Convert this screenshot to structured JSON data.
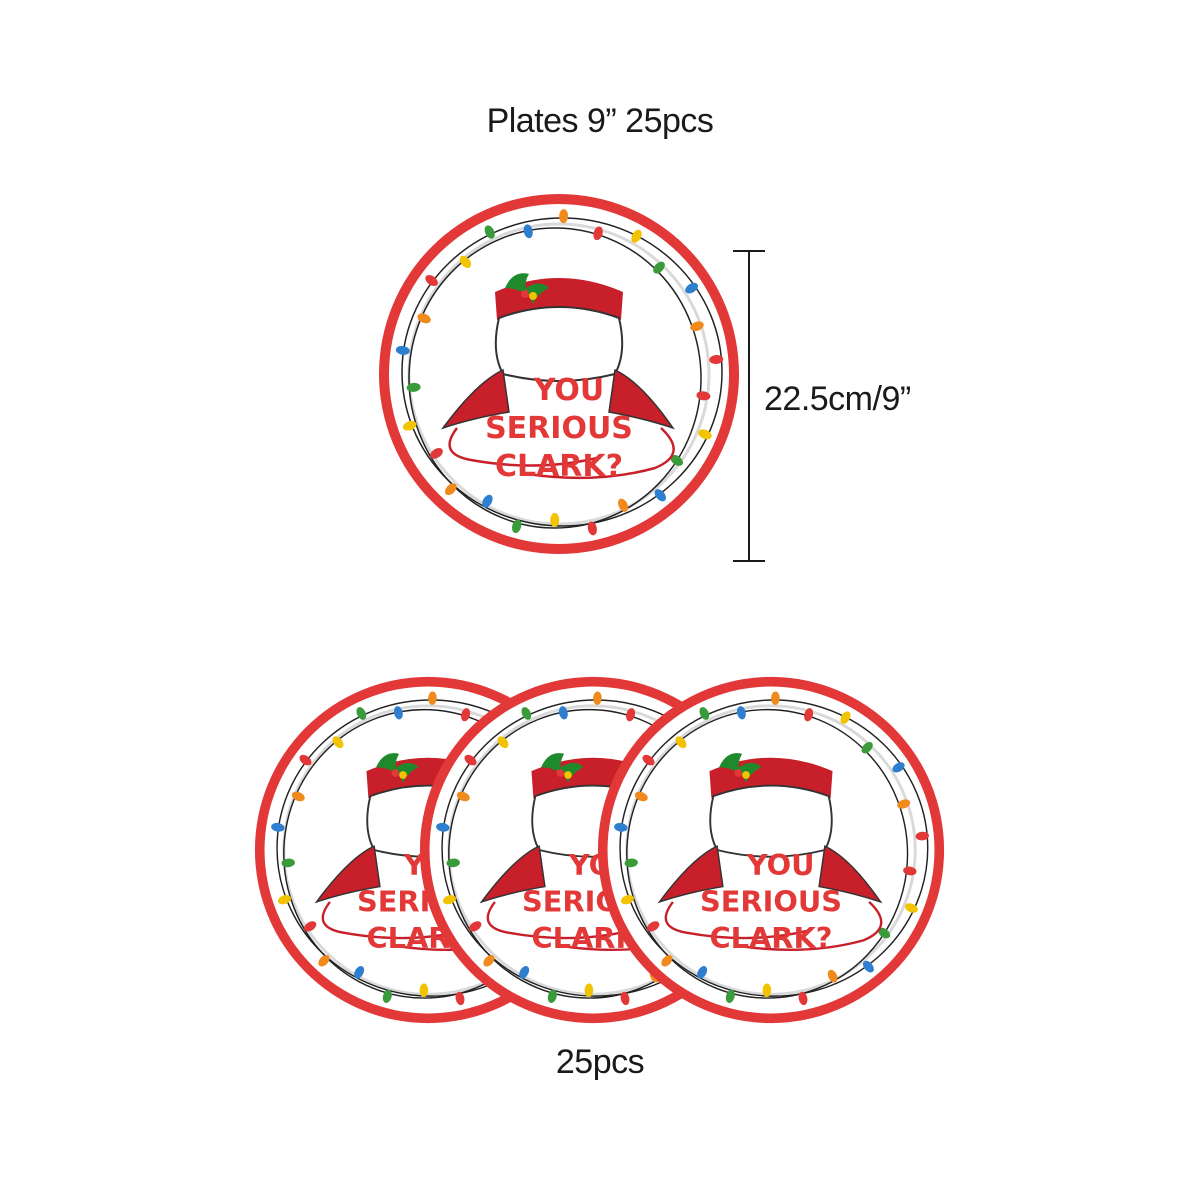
{
  "captions": {
    "title": "Plates 9”   25pcs",
    "size": "22.5cm/9”",
    "count": "25pcs"
  },
  "plate": {
    "text_line_1": "YOU",
    "text_line_2": "SERIOUS",
    "text_line_3": "CLARK?"
  },
  "colors": {
    "rim": "#e23838",
    "plate_bg": "#ffffff",
    "inner_ring": "#d9d9d9",
    "wire": "#222222",
    "bulbs": [
      "#e23838",
      "#f2c300",
      "#3a9b3a",
      "#2f7fd0",
      "#f08a1c"
    ],
    "holly": "#1f8a2c",
    "plaid": "#c8202a"
  }
}
